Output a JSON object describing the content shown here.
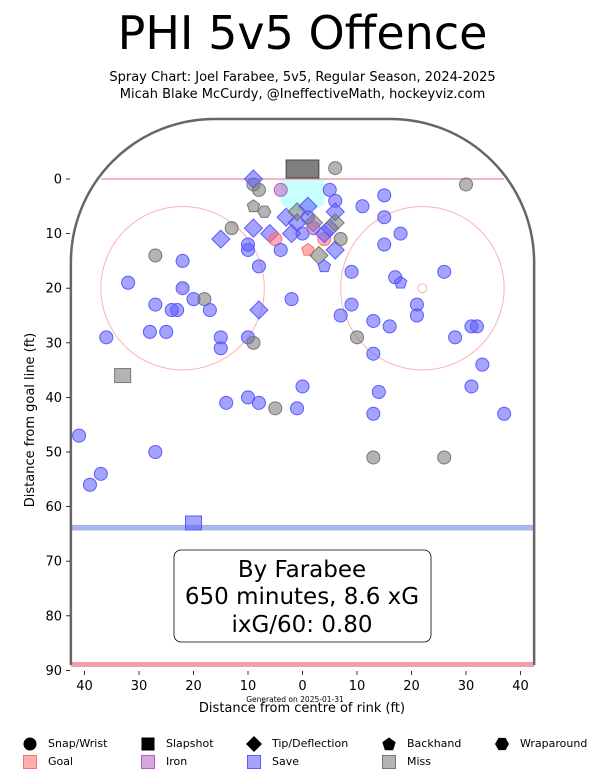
{
  "header": {
    "title": "PHI 5v5 Offence",
    "subtitle_line1": "Spray Chart: Joel Farabee, 5v5, Regular Season, 2024-2025",
    "subtitle_line2": "Micah Blake McCurdy, @IneffectiveMath, hockeyviz.com"
  },
  "colors": {
    "goal": "#ff6e6e",
    "save": "#5a5aff",
    "miss": "#777777",
    "iron": "#b060c0",
    "rink_board": "#666666",
    "blue_line": "#a8b8e8",
    "red_line": "#f0a0a8",
    "crease": "#c8ffff"
  },
  "infobox": {
    "line1": "By Farabee",
    "line2": "650 minutes, 8.6 xG",
    "line3": "ixG/60: 0.80"
  },
  "generated": "Generated on 2025-01-31",
  "legend": {
    "shapes": [
      {
        "label": "Snap/Wrist",
        "icon": "circle"
      },
      {
        "label": "Slapshot",
        "icon": "square"
      },
      {
        "label": "Tip/Deflection",
        "icon": "diamond"
      },
      {
        "label": "Backhand",
        "icon": "pentagon"
      },
      {
        "label": "Wraparound",
        "icon": "hexagon"
      }
    ],
    "outcomes": [
      {
        "label": "Goal",
        "color": "#ff6e6e"
      },
      {
        "label": "Iron",
        "color": "#b060c0"
      },
      {
        "label": "Save",
        "color": "#5a5aff"
      },
      {
        "label": "Miss",
        "color": "#777777"
      }
    ]
  },
  "chart_data": {
    "type": "scatter",
    "xlabel": "Distance from centre of rink (ft)",
    "ylabel": "Distance from goal line (ft)",
    "xlim": [
      42.5,
      -42.5
    ],
    "ylim": [
      90,
      -11
    ],
    "xticks": [
      40,
      30,
      20,
      10,
      0,
      10,
      20,
      30,
      40
    ],
    "yticks": [
      "0",
      "10",
      "20",
      "30",
      "40",
      "50",
      "60",
      "70",
      "80",
      "90"
    ],
    "points": [
      {
        "x": -41,
        "y": 47,
        "s": "snap",
        "o": "save"
      },
      {
        "x": -39,
        "y": 56,
        "s": "snap",
        "o": "save"
      },
      {
        "x": -37,
        "y": 54,
        "s": "snap",
        "o": "save"
      },
      {
        "x": -36,
        "y": 29,
        "s": "snap",
        "o": "save"
      },
      {
        "x": -33,
        "y": 36,
        "s": "slap",
        "o": "miss"
      },
      {
        "x": -32,
        "y": 19,
        "s": "snap",
        "o": "save"
      },
      {
        "x": -28,
        "y": 28,
        "s": "snap",
        "o": "save"
      },
      {
        "x": -27,
        "y": 14,
        "s": "snap",
        "o": "miss"
      },
      {
        "x": -27,
        "y": 23,
        "s": "snap",
        "o": "save"
      },
      {
        "x": -27,
        "y": 50,
        "s": "snap",
        "o": "save"
      },
      {
        "x": -25,
        "y": 28,
        "s": "snap",
        "o": "save"
      },
      {
        "x": -24,
        "y": 24,
        "s": "snap",
        "o": "save"
      },
      {
        "x": -23,
        "y": 24,
        "s": "snap",
        "o": "save"
      },
      {
        "x": -22,
        "y": 15,
        "s": "snap",
        "o": "save"
      },
      {
        "x": -22,
        "y": 20,
        "s": "snap",
        "o": "save"
      },
      {
        "x": -20,
        "y": 22,
        "s": "snap",
        "o": "save"
      },
      {
        "x": -20,
        "y": 63,
        "s": "slap",
        "o": "save"
      },
      {
        "x": -18,
        "y": 22,
        "s": "snap",
        "o": "miss"
      },
      {
        "x": -17,
        "y": 24,
        "s": "snap",
        "o": "save"
      },
      {
        "x": -15,
        "y": 11,
        "s": "tip",
        "o": "save"
      },
      {
        "x": -15,
        "y": 29,
        "s": "snap",
        "o": "save"
      },
      {
        "x": -15,
        "y": 31,
        "s": "snap",
        "o": "save"
      },
      {
        "x": -14,
        "y": 41,
        "s": "snap",
        "o": "save"
      },
      {
        "x": -13,
        "y": 9,
        "s": "snap",
        "o": "miss"
      },
      {
        "x": -10,
        "y": 13,
        "s": "snap",
        "o": "save"
      },
      {
        "x": -10,
        "y": 12,
        "s": "snap",
        "o": "save"
      },
      {
        "x": -10,
        "y": 29,
        "s": "snap",
        "o": "save"
      },
      {
        "x": -10,
        "y": 40,
        "s": "snap",
        "o": "save"
      },
      {
        "x": -9,
        "y": 30,
        "s": "snap",
        "o": "miss"
      },
      {
        "x": -9,
        "y": 5,
        "s": "pent",
        "o": "miss"
      },
      {
        "x": -9,
        "y": 1,
        "s": "snap",
        "o": "miss"
      },
      {
        "x": -9,
        "y": 0,
        "s": "tip",
        "o": "save"
      },
      {
        "x": -8,
        "y": 2,
        "s": "snap",
        "o": "miss"
      },
      {
        "x": -8,
        "y": 16,
        "s": "snap",
        "o": "save"
      },
      {
        "x": -8,
        "y": 24,
        "s": "tip",
        "o": "save"
      },
      {
        "x": -8,
        "y": 41,
        "s": "snap",
        "o": "save"
      },
      {
        "x": -7,
        "y": 6,
        "s": "hex",
        "o": "miss"
      },
      {
        "x": -9,
        "y": 9,
        "s": "tip",
        "o": "save"
      },
      {
        "x": -6,
        "y": 10,
        "s": "tip",
        "o": "save"
      },
      {
        "x": -5,
        "y": 11,
        "s": "snap",
        "o": "goal"
      },
      {
        "x": -5,
        "y": 42,
        "s": "snap",
        "o": "miss"
      },
      {
        "x": -4,
        "y": 13,
        "s": "snap",
        "o": "save"
      },
      {
        "x": -4,
        "y": 2,
        "s": "snap",
        "o": "iron"
      },
      {
        "x": -3,
        "y": 7,
        "s": "tip",
        "o": "save"
      },
      {
        "x": -2,
        "y": 22,
        "s": "snap",
        "o": "save"
      },
      {
        "x": -2,
        "y": 10,
        "s": "tip",
        "o": "save"
      },
      {
        "x": -1,
        "y": 42,
        "s": "snap",
        "o": "save"
      },
      {
        "x": -1,
        "y": 8,
        "s": "tip",
        "o": "save"
      },
      {
        "x": -1,
        "y": 6,
        "s": "tip",
        "o": "miss"
      },
      {
        "x": 0,
        "y": 38,
        "s": "snap",
        "o": "save"
      },
      {
        "x": 0,
        "y": 10,
        "s": "snap",
        "o": "save"
      },
      {
        "x": 1,
        "y": 5,
        "s": "tip",
        "o": "save"
      },
      {
        "x": 1,
        "y": 7,
        "s": "snap",
        "o": "save"
      },
      {
        "x": 1,
        "y": 13,
        "s": "pent",
        "o": "goal"
      },
      {
        "x": 2,
        "y": 8,
        "s": "tip",
        "o": "miss"
      },
      {
        "x": 2,
        "y": 9,
        "s": "snap",
        "o": "iron"
      },
      {
        "x": 3,
        "y": 14,
        "s": "tip",
        "o": "miss"
      },
      {
        "x": 4,
        "y": 11,
        "s": "snap",
        "o": "goal"
      },
      {
        "x": 4,
        "y": 16,
        "s": "pent",
        "o": "save"
      },
      {
        "x": 4,
        "y": 10,
        "s": "tip",
        "o": "save"
      },
      {
        "x": 5,
        "y": 9,
        "s": "tip",
        "o": "save"
      },
      {
        "x": 5,
        "y": 2,
        "s": "snap",
        "o": "save"
      },
      {
        "x": 6,
        "y": 4,
        "s": "snap",
        "o": "save"
      },
      {
        "x": 6,
        "y": 6,
        "s": "tip",
        "o": "save"
      },
      {
        "x": 6,
        "y": 8,
        "s": "tip",
        "o": "miss"
      },
      {
        "x": 6,
        "y": 13,
        "s": "tip",
        "o": "save"
      },
      {
        "x": 6,
        "y": -2,
        "s": "snap",
        "o": "miss"
      },
      {
        "x": 7,
        "y": 11,
        "s": "snap",
        "o": "miss"
      },
      {
        "x": 7,
        "y": 25,
        "s": "snap",
        "o": "save"
      },
      {
        "x": 9,
        "y": 17,
        "s": "snap",
        "o": "save"
      },
      {
        "x": 9,
        "y": 23,
        "s": "snap",
        "o": "save"
      },
      {
        "x": 10,
        "y": 29,
        "s": "snap",
        "o": "miss"
      },
      {
        "x": 11,
        "y": 5,
        "s": "snap",
        "o": "save"
      },
      {
        "x": 13,
        "y": 26,
        "s": "snap",
        "o": "save"
      },
      {
        "x": 13,
        "y": 32,
        "s": "snap",
        "o": "save"
      },
      {
        "x": 13,
        "y": 43,
        "s": "snap",
        "o": "save"
      },
      {
        "x": 13,
        "y": 51,
        "s": "snap",
        "o": "miss"
      },
      {
        "x": 14,
        "y": 39,
        "s": "snap",
        "o": "save"
      },
      {
        "x": 15,
        "y": 3,
        "s": "snap",
        "o": "save"
      },
      {
        "x": 15,
        "y": 7,
        "s": "snap",
        "o": "save"
      },
      {
        "x": 15,
        "y": 12,
        "s": "snap",
        "o": "save"
      },
      {
        "x": 16,
        "y": 27,
        "s": "snap",
        "o": "save"
      },
      {
        "x": 17,
        "y": 18,
        "s": "snap",
        "o": "save"
      },
      {
        "x": 18,
        "y": 10,
        "s": "snap",
        "o": "save"
      },
      {
        "x": 18,
        "y": 19,
        "s": "pent",
        "o": "save"
      },
      {
        "x": 21,
        "y": 23,
        "s": "snap",
        "o": "save"
      },
      {
        "x": 21,
        "y": 25,
        "s": "snap",
        "o": "save"
      },
      {
        "x": 26,
        "y": 17,
        "s": "snap",
        "o": "save"
      },
      {
        "x": 26,
        "y": 51,
        "s": "snap",
        "o": "miss"
      },
      {
        "x": 28,
        "y": 29,
        "s": "snap",
        "o": "save"
      },
      {
        "x": 30,
        "y": 1,
        "s": "snap",
        "o": "miss"
      },
      {
        "x": 31,
        "y": 27,
        "s": "snap",
        "o": "save"
      },
      {
        "x": 32,
        "y": 27,
        "s": "snap",
        "o": "save"
      },
      {
        "x": 31,
        "y": 38,
        "s": "snap",
        "o": "save"
      },
      {
        "x": 33,
        "y": 34,
        "s": "snap",
        "o": "save"
      },
      {
        "x": 37,
        "y": 43,
        "s": "snap",
        "o": "save"
      }
    ]
  }
}
